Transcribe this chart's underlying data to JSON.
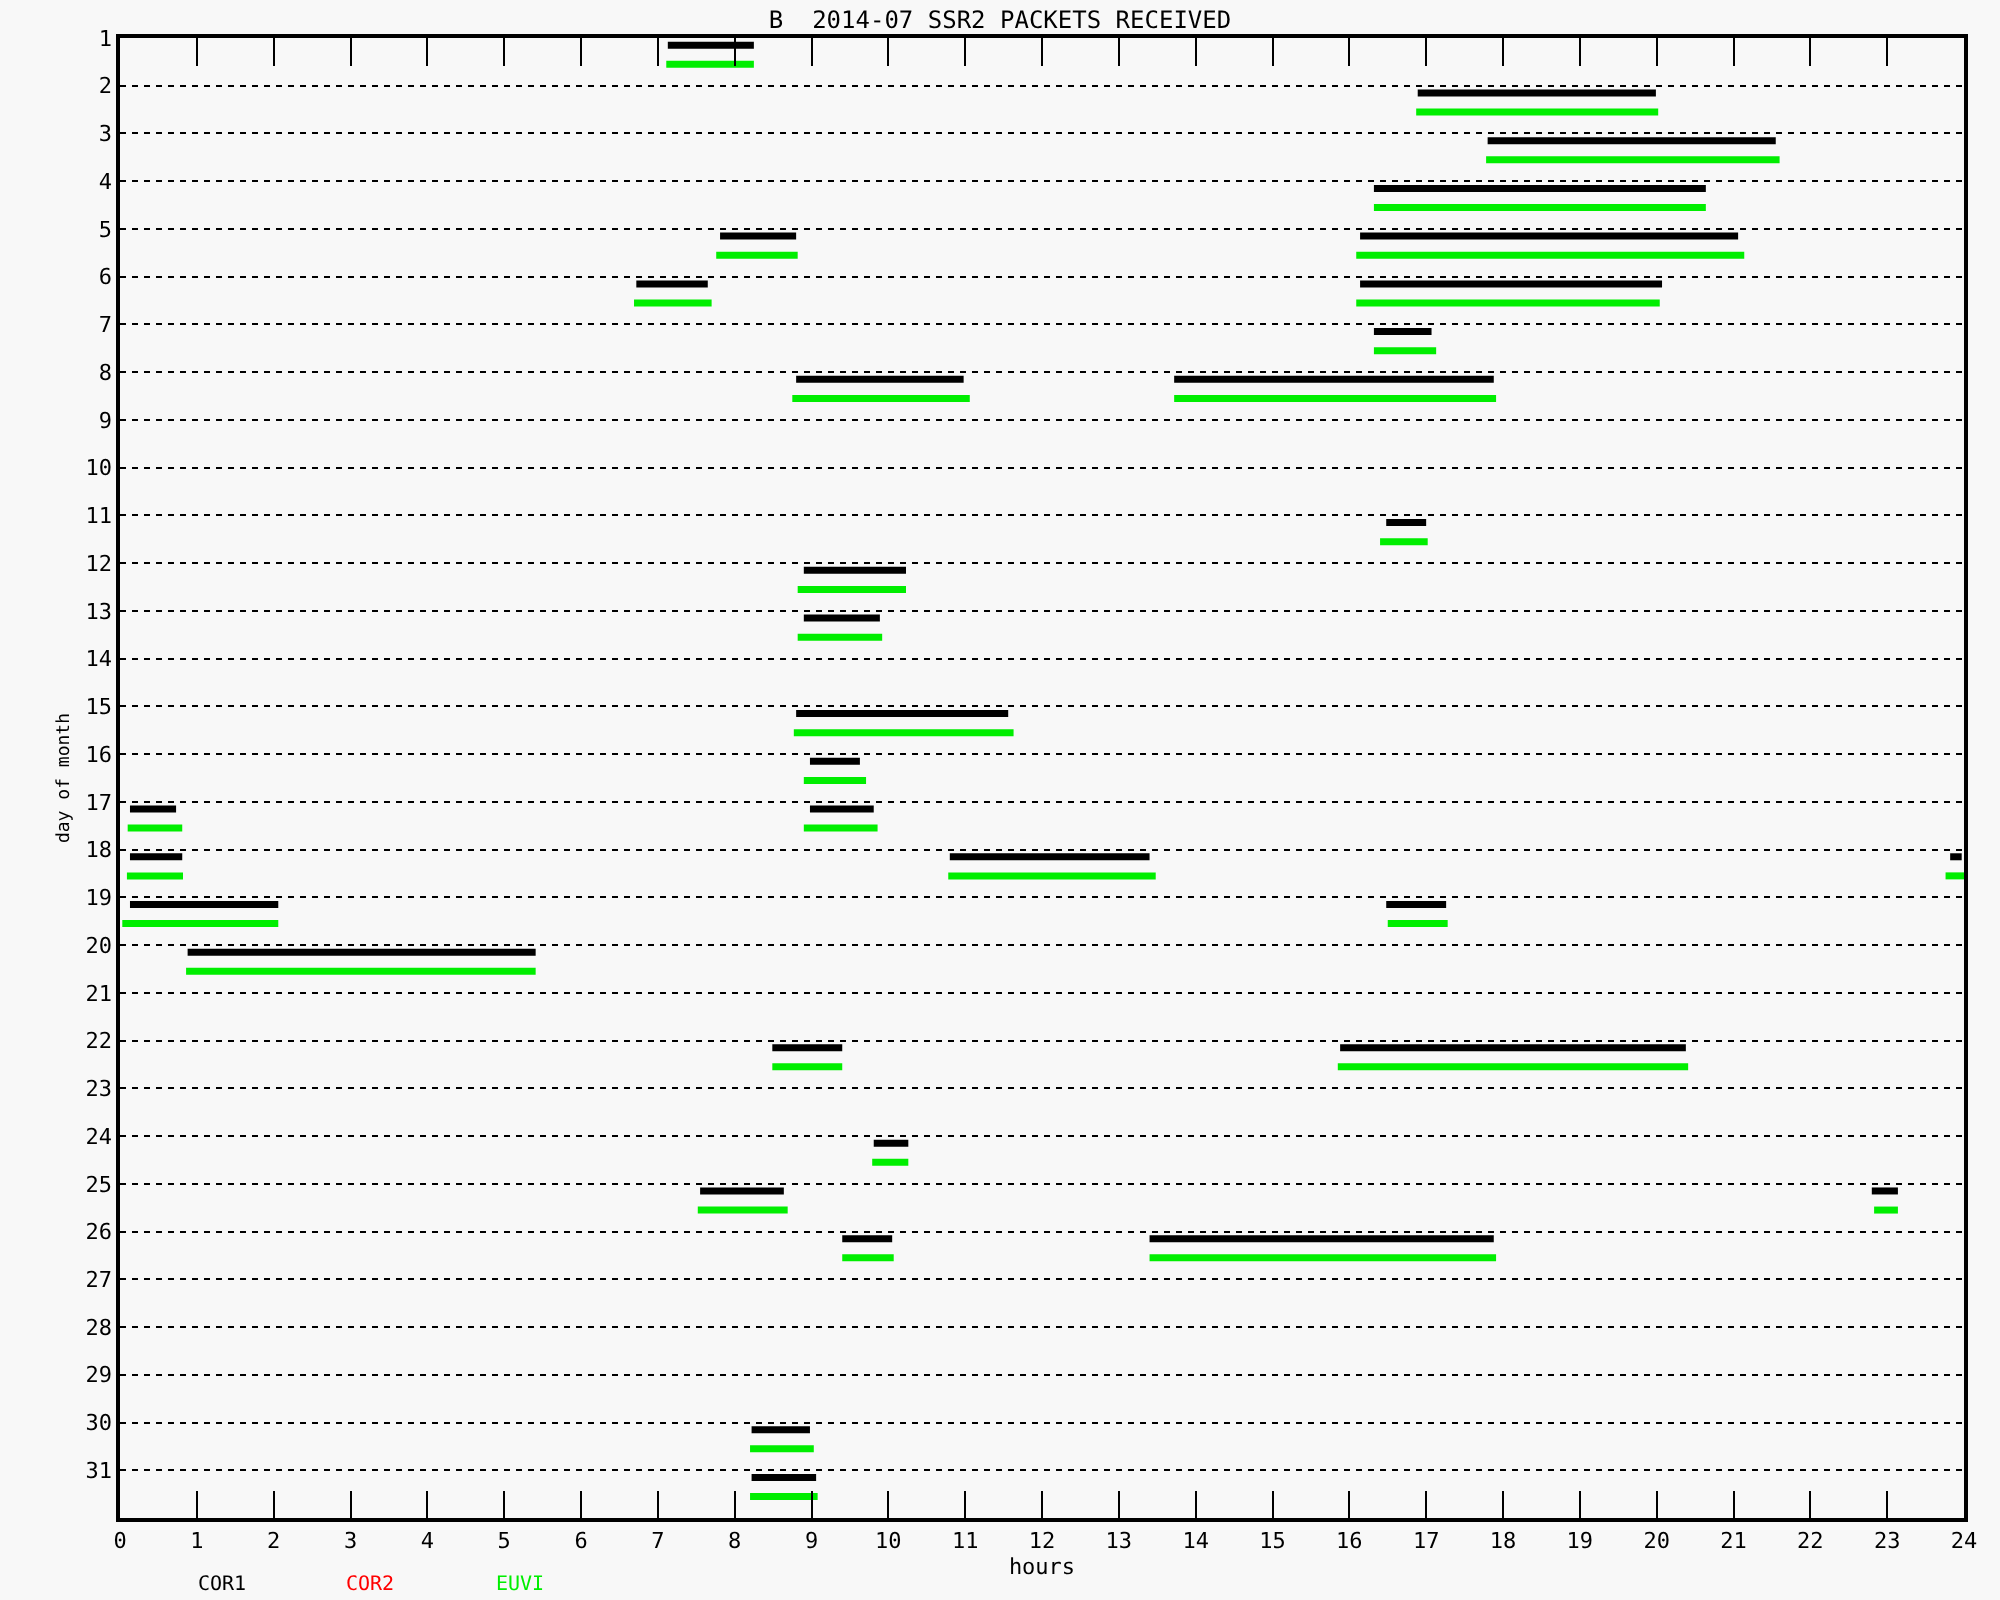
{
  "chart_data": {
    "type": "line",
    "title": "B  2014-07 SSR2 PACKETS RECEIVED",
    "xlabel": "hours",
    "ylabel": "day of month",
    "xlim": [
      0,
      24
    ],
    "xticks": [
      0,
      1,
      2,
      3,
      4,
      5,
      6,
      7,
      8,
      9,
      10,
      11,
      12,
      13,
      14,
      15,
      16,
      17,
      18,
      19,
      20,
      21,
      22,
      23,
      24
    ],
    "ylim": [
      32,
      1
    ],
    "yticks": [
      1,
      2,
      3,
      4,
      5,
      6,
      7,
      8,
      9,
      10,
      11,
      12,
      13,
      14,
      15,
      16,
      17,
      18,
      19,
      20,
      21,
      22,
      23,
      24,
      25,
      26,
      27,
      28,
      29,
      30,
      31
    ],
    "grid": "y",
    "legend": "bottom",
    "marker": "none",
    "line_style": "solid",
    "series": [
      {
        "name": "COR1",
        "color": "#000000",
        "x": [
          7.13,
          8.25,
          null,
          16.89,
          19.99,
          null,
          17.8,
          21.55,
          null,
          16.32,
          20.64,
          null,
          7.81,
          8.8,
          null,
          16.14,
          21.06,
          null,
          6.72,
          7.65,
          null,
          16.14,
          20.07,
          null,
          16.32,
          17.07,
          null,
          8.8,
          10.98,
          null,
          13.72,
          17.88,
          null,
          16.48,
          17.0,
          null,
          8.9,
          10.23,
          null,
          8.9,
          9.89,
          null,
          8.8,
          11.56,
          null,
          8.98,
          9.63,
          null,
          0.13,
          0.73,
          null,
          8.98,
          9.81,
          null,
          0.13,
          0.81,
          null,
          10.8,
          13.4,
          null,
          23.82,
          23.97,
          null,
          0.13,
          2.06,
          null,
          16.48,
          17.26,
          null,
          0.88,
          5.41,
          null,
          8.49,
          9.4,
          null,
          15.88,
          20.38,
          null,
          9.81,
          10.26,
          null,
          7.55,
          8.64,
          null,
          22.8,
          23.14,
          null,
          9.4,
          10.05,
          null,
          13.4,
          17.88,
          null,
          8.22,
          8.98,
          null,
          8.22,
          9.06
        ],
        "values": [
          1.15,
          1.15,
          null,
          2.15,
          2.15,
          null,
          3.15,
          3.15,
          null,
          4.15,
          4.15,
          null,
          5.15,
          5.15,
          null,
          5.15,
          5.15,
          null,
          6.15,
          6.15,
          null,
          6.15,
          6.15,
          null,
          7.15,
          7.15,
          null,
          8.15,
          8.15,
          null,
          8.15,
          8.15,
          null,
          11.15,
          11.15,
          null,
          12.15,
          12.15,
          null,
          13.15,
          13.15,
          null,
          15.15,
          15.15,
          null,
          16.15,
          16.15,
          null,
          17.15,
          17.15,
          null,
          17.15,
          17.15,
          null,
          18.15,
          18.15,
          null,
          18.15,
          18.15,
          null,
          18.15,
          18.15,
          null,
          19.15,
          19.15,
          null,
          19.15,
          19.15,
          null,
          20.15,
          20.15,
          null,
          22.15,
          22.15,
          null,
          22.15,
          22.15,
          null,
          24.15,
          24.15,
          null,
          25.15,
          25.15,
          null,
          25.15,
          25.15,
          null,
          26.15,
          26.15,
          null,
          26.15,
          26.15,
          null,
          30.15,
          30.15,
          null,
          31.15,
          31.15
        ]
      },
      {
        "name": "COR2",
        "color": "#ff0000"
      },
      {
        "name": "EUVI",
        "color": "#00ee00",
        "x": [
          7.11,
          8.25,
          null,
          16.87,
          20.02,
          null,
          17.78,
          21.6,
          null,
          16.32,
          20.64,
          null,
          7.76,
          8.82,
          null,
          16.09,
          21.14,
          null,
          6.69,
          7.7,
          null,
          16.09,
          20.04,
          null,
          16.32,
          17.13,
          null,
          8.75,
          11.06,
          null,
          13.72,
          17.91,
          null,
          16.4,
          17.02,
          null,
          8.82,
          10.23,
          null,
          8.82,
          9.92,
          null,
          8.77,
          11.63,
          null,
          8.9,
          9.71,
          null,
          0.1,
          0.81,
          null,
          8.9,
          9.86,
          null,
          0.09,
          0.82,
          null,
          10.78,
          13.48,
          null,
          23.76,
          24.0,
          null,
          0.03,
          2.06,
          null,
          16.5,
          17.28,
          null,
          0.86,
          5.41,
          null,
          8.49,
          9.4,
          null,
          15.85,
          20.41,
          null,
          9.79,
          10.26,
          null,
          7.52,
          8.69,
          null,
          22.83,
          23.14,
          null,
          9.4,
          10.07,
          null,
          13.4,
          17.91,
          null,
          8.2,
          9.03,
          null,
          8.2,
          9.08
        ],
        "values": [
          1.55,
          1.55,
          null,
          2.55,
          2.55,
          null,
          3.55,
          3.55,
          null,
          4.55,
          4.55,
          null,
          5.55,
          5.55,
          null,
          5.55,
          5.55,
          null,
          6.55,
          6.55,
          null,
          6.55,
          6.55,
          null,
          7.55,
          7.55,
          null,
          8.55,
          8.55,
          null,
          8.55,
          8.55,
          null,
          11.55,
          11.55,
          null,
          12.55,
          12.55,
          null,
          13.55,
          13.55,
          null,
          15.55,
          15.55,
          null,
          16.55,
          16.55,
          null,
          17.55,
          17.55,
          null,
          17.55,
          17.55,
          null,
          18.55,
          18.55,
          null,
          18.55,
          18.55,
          null,
          18.55,
          18.55,
          null,
          19.55,
          19.55,
          null,
          19.55,
          19.55,
          null,
          20.55,
          20.55,
          null,
          22.55,
          22.55,
          null,
          22.55,
          22.55,
          null,
          24.55,
          24.55,
          null,
          25.55,
          25.55,
          null,
          25.55,
          25.55,
          null,
          26.55,
          26.55,
          null,
          26.55,
          26.55,
          null,
          30.55,
          30.55,
          null,
          31.55,
          31.55
        ]
      }
    ]
  }
}
